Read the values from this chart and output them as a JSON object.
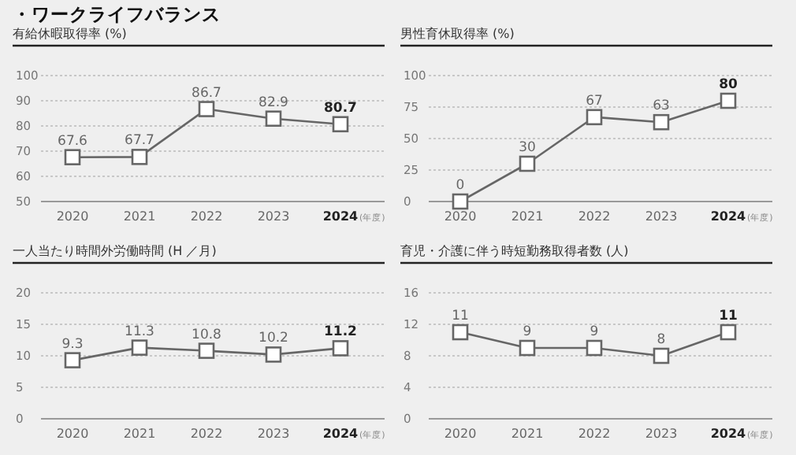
{
  "chart_data": [
    {
      "type": "other",
      "title": "・ワークライフバランス"
    },
    {
      "type": "line",
      "title": "有給休暇取得率 (%)",
      "xlabel": "(年度)",
      "categories": [
        "2020",
        "2021",
        "2022",
        "2023",
        "2024"
      ],
      "series": [
        {
          "color": "#666666",
          "values": [
            67.6,
            67.7,
            86.7,
            82.9,
            80.7
          ]
        }
      ],
      "ylim": [
        50,
        100
      ],
      "yticks": [
        50,
        60,
        70,
        80,
        90,
        100
      ],
      "grid": "y",
      "marker": "square",
      "data_labels": true
    },
    {
      "type": "line",
      "title": "男性育休取得率 (%)",
      "xlabel": "(年度)",
      "categories": [
        "2020",
        "2021",
        "2022",
        "2023",
        "2024"
      ],
      "series": [
        {
          "color": "#666666",
          "values": [
            0,
            30,
            67,
            63,
            80
          ]
        }
      ],
      "ylim": [
        0,
        100
      ],
      "yticks": [
        0,
        25,
        50,
        75,
        100
      ],
      "grid": "y",
      "marker": "square",
      "data_labels": true
    },
    {
      "type": "line",
      "title": "一人当たり時間外労働時間 (H ／月)",
      "xlabel": "(年度)",
      "categories": [
        "2020",
        "2021",
        "2022",
        "2023",
        "2024"
      ],
      "series": [
        {
          "color": "#666666",
          "values": [
            9.3,
            11.3,
            10.8,
            10.2,
            11.2
          ]
        }
      ],
      "ylim": [
        0,
        20
      ],
      "yticks": [
        0,
        5,
        10,
        15,
        20
      ],
      "grid": "y",
      "marker": "square",
      "data_labels": true
    },
    {
      "type": "line",
      "title": "育児・介護に伴う時短勤務取得者数 (人)",
      "xlabel": "(年度)",
      "categories": [
        "2020",
        "2021",
        "2022",
        "2023",
        "2024"
      ],
      "series": [
        {
          "color": "#666666",
          "values": [
            11,
            9,
            9,
            8,
            11
          ]
        }
      ],
      "ylim": [
        0,
        16
      ],
      "yticks": [
        0,
        4,
        8,
        12,
        16
      ],
      "grid": "y",
      "marker": "square",
      "data_labels": true
    }
  ]
}
